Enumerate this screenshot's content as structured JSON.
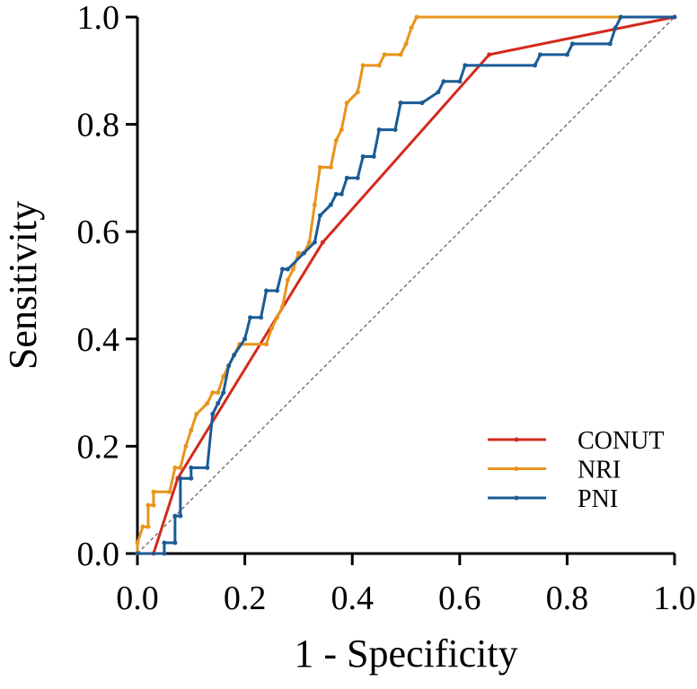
{
  "chart_data": {
    "type": "line",
    "xlabel": "1 - Specificity",
    "ylabel": "Sensitivity",
    "xlim": [
      0,
      1
    ],
    "ylim": [
      0,
      1
    ],
    "xticks": [
      {
        "value": 0,
        "label": "0.0"
      },
      0.2,
      0.4,
      0.6,
      0.8,
      {
        "value": 1,
        "label": "1.0"
      }
    ],
    "yticks": [
      {
        "value": 0,
        "label": "0.0"
      },
      0.2,
      0.4,
      0.6,
      0.8,
      {
        "value": 1,
        "label": "1.0"
      }
    ],
    "legend": "lower right",
    "series": [
      {
        "name": "CONUT",
        "color": "#d42a1e",
        "x": [
          0,
          0.03,
          0.075,
          0.345,
          0.655,
          1
        ],
        "values": [
          0,
          0,
          0.14,
          0.58,
          0.93,
          1
        ]
      },
      {
        "name": "NRI",
        "color": "#e8941c",
        "x": [
          0,
          0,
          0.01,
          0.02,
          0.02,
          0.03,
          0.03,
          0.06,
          0.07,
          0.08,
          0.09,
          0.1,
          0.11,
          0.13,
          0.14,
          0.15,
          0.16,
          0.17,
          0.18,
          0.19,
          0.24,
          0.25,
          0.26,
          0.27,
          0.28,
          0.29,
          0.3,
          0.31,
          0.32,
          0.33,
          0.34,
          0.36,
          0.37,
          0.38,
          0.39,
          0.41,
          0.42,
          0.45,
          0.46,
          0.49,
          0.5,
          0.51,
          0.52,
          1
        ],
        "values": [
          0,
          0.02,
          0.05,
          0.05,
          0.09,
          0.09,
          0.115,
          0.115,
          0.16,
          0.16,
          0.2,
          0.23,
          0.26,
          0.28,
          0.3,
          0.3,
          0.33,
          0.35,
          0.37,
          0.39,
          0.39,
          0.42,
          0.44,
          0.46,
          0.51,
          0.53,
          0.56,
          0.56,
          0.58,
          0.65,
          0.72,
          0.72,
          0.77,
          0.79,
          0.84,
          0.86,
          0.91,
          0.91,
          0.93,
          0.93,
          0.95,
          0.98,
          1,
          1
        ]
      },
      {
        "name": "PNI",
        "color": "#1b5b96",
        "x": [
          0,
          0.05,
          0.05,
          0.07,
          0.07,
          0.08,
          0.08,
          0.1,
          0.1,
          0.13,
          0.14,
          0.15,
          0.16,
          0.17,
          0.18,
          0.2,
          0.21,
          0.23,
          0.24,
          0.26,
          0.27,
          0.28,
          0.31,
          0.33,
          0.34,
          0.36,
          0.37,
          0.38,
          0.39,
          0.41,
          0.42,
          0.44,
          0.45,
          0.48,
          0.49,
          0.53,
          0.56,
          0.57,
          0.6,
          0.61,
          0.74,
          0.75,
          0.8,
          0.81,
          0.88,
          0.89,
          0.9,
          1
        ],
        "values": [
          0,
          0,
          0.02,
          0.02,
          0.07,
          0.07,
          0.14,
          0.14,
          0.16,
          0.16,
          0.26,
          0.28,
          0.3,
          0.35,
          0.37,
          0.4,
          0.44,
          0.44,
          0.49,
          0.49,
          0.53,
          0.53,
          0.56,
          0.58,
          0.63,
          0.65,
          0.67,
          0.67,
          0.7,
          0.7,
          0.74,
          0.74,
          0.79,
          0.79,
          0.84,
          0.84,
          0.86,
          0.88,
          0.88,
          0.91,
          0.91,
          0.93,
          0.93,
          0.95,
          0.95,
          0.98,
          1,
          1
        ]
      }
    ]
  }
}
